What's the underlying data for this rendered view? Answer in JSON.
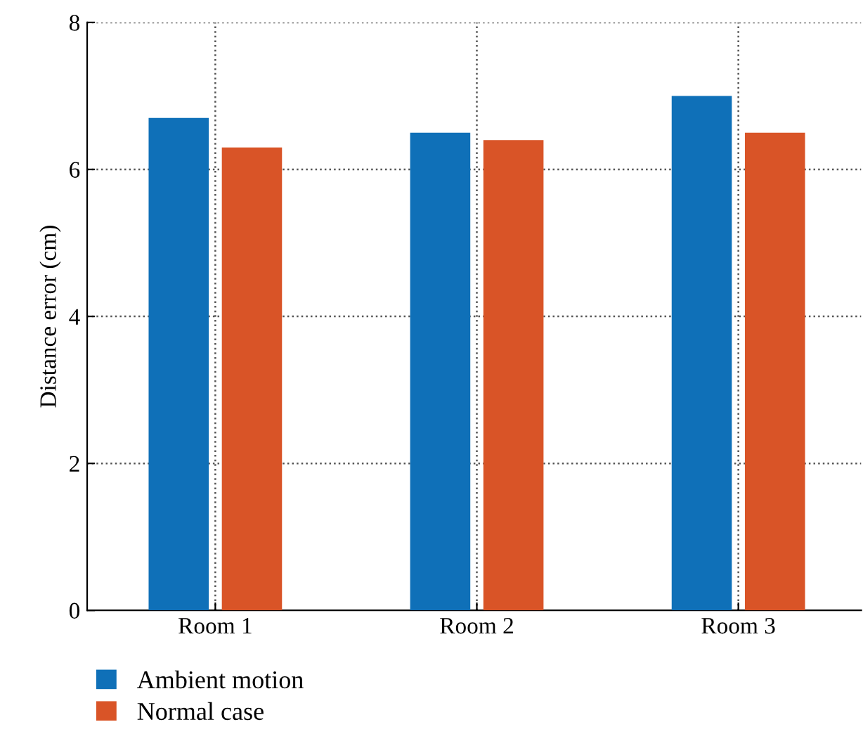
{
  "chart_data": {
    "type": "bar",
    "ylabel": "Distance error (cm)",
    "categories": [
      "Room 1",
      "Room 2",
      "Room 3"
    ],
    "series": [
      {
        "name": "Ambient motion",
        "color": "#0f70b8",
        "values": [
          6.7,
          6.5,
          7.0
        ]
      },
      {
        "name": "Normal case",
        "color": "#d95427",
        "values": [
          6.3,
          6.4,
          6.5
        ]
      }
    ],
    "ylim": [
      0,
      8
    ],
    "yticks": [
      0,
      2,
      4,
      6,
      8
    ],
    "grid": true,
    "legend": "bottom left",
    "line_style": "dotted"
  }
}
